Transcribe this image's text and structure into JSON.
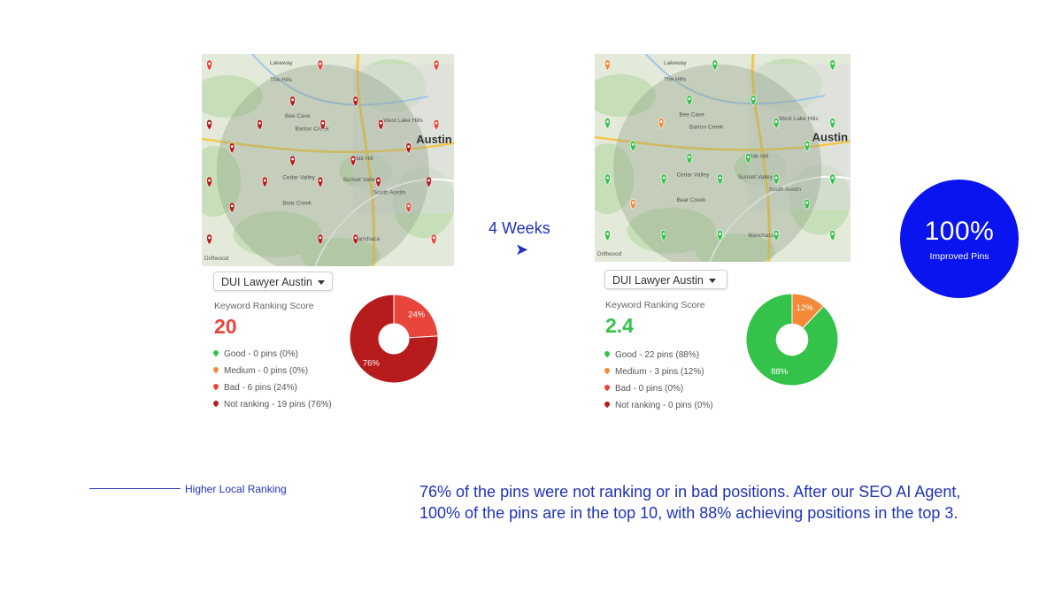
{
  "transition": {
    "label": "4 Weeks",
    "arrow_glyph": "➤"
  },
  "badge": {
    "value": "100%",
    "label": "Improved Pins",
    "color": "#0a14ee"
  },
  "footer": {
    "tagline": "Higher Local Ranking",
    "summary": "76% of the pins were not ranking or in bad positions. After our SEO AI Agent, 100% of the pins are in the top 10, with 88% achieving positions in the top 3."
  },
  "colors": {
    "good": "#35c24a",
    "medium": "#f4893a",
    "bad": "#e8453c",
    "not_ranking": "#b71c1c",
    "accent": "#1f33b8"
  },
  "map_labels": [
    "Lakeway",
    "The Hills",
    "Bee Cave",
    "Barton Creek",
    "West Lake Hills",
    "Austin",
    "Cedar Valley",
    "Sunset Valley",
    "Bear Creek",
    "Manchaca",
    "Driftwood",
    "South Austin",
    "Oak Hill"
  ],
  "before": {
    "keyword": "DUI Lawyer Austin",
    "score_label": "Keyword Ranking Score",
    "score": "20",
    "score_color": "#e8453c",
    "legend": [
      {
        "key": "good",
        "label": "Good - 0 pins (0%)"
      },
      {
        "key": "medium",
        "label": "Medium - 0 pins (0%)"
      },
      {
        "key": "bad",
        "label": "Bad - 6 pins (24%)"
      },
      {
        "key": "not_ranking",
        "label": "Not ranking - 19 pins (76%)"
      }
    ],
    "chart_data": {
      "type": "pie",
      "slices": [
        {
          "key": "bad",
          "value": 24,
          "label": "24%",
          "color": "#e8453c"
        },
        {
          "key": "not_ranking",
          "value": 76,
          "label": "76%",
          "color": "#b71c1c"
        }
      ]
    },
    "pins": [
      {
        "gx": 0.03,
        "gy": 0.05,
        "key": "bad"
      },
      {
        "gx": 0.47,
        "gy": 0.05,
        "key": "bad"
      },
      {
        "gx": 0.93,
        "gy": 0.05,
        "key": "bad"
      },
      {
        "gx": 0.03,
        "gy": 0.33,
        "key": "not_ranking"
      },
      {
        "gx": 0.23,
        "gy": 0.33,
        "key": "not_ranking"
      },
      {
        "gx": 0.71,
        "gy": 0.33,
        "key": "not_ranking"
      },
      {
        "gx": 0.93,
        "gy": 0.33,
        "key": "bad"
      },
      {
        "gx": 0.03,
        "gy": 0.6,
        "key": "not_ranking"
      },
      {
        "gx": 0.25,
        "gy": 0.6,
        "key": "not_ranking"
      },
      {
        "gx": 0.47,
        "gy": 0.6,
        "key": "not_ranking"
      },
      {
        "gx": 0.7,
        "gy": 0.6,
        "key": "not_ranking"
      },
      {
        "gx": 0.9,
        "gy": 0.6,
        "key": "not_ranking"
      },
      {
        "gx": 0.03,
        "gy": 0.87,
        "key": "not_ranking"
      },
      {
        "gx": 0.47,
        "gy": 0.87,
        "key": "not_ranking"
      },
      {
        "gx": 0.92,
        "gy": 0.87,
        "key": "bad"
      },
      {
        "gx": 0.61,
        "gy": 0.87,
        "key": "not_ranking"
      },
      {
        "gx": 0.36,
        "gy": 0.5,
        "key": "not_ranking"
      },
      {
        "gx": 0.6,
        "gy": 0.5,
        "key": "not_ranking"
      },
      {
        "gx": 0.36,
        "gy": 0.22,
        "key": "not_ranking"
      },
      {
        "gx": 0.61,
        "gy": 0.22,
        "key": "not_ranking"
      },
      {
        "gx": 0.12,
        "gy": 0.44,
        "key": "not_ranking"
      },
      {
        "gx": 0.82,
        "gy": 0.44,
        "key": "not_ranking"
      },
      {
        "gx": 0.12,
        "gy": 0.72,
        "key": "not_ranking"
      },
      {
        "gx": 0.82,
        "gy": 0.72,
        "key": "bad"
      },
      {
        "gx": 0.48,
        "gy": 0.33,
        "key": "not_ranking"
      }
    ]
  },
  "after": {
    "keyword": "DUI Lawyer Austin",
    "score_label": "Keyword Ranking Score",
    "score": "2.4",
    "score_color": "#35c24a",
    "legend": [
      {
        "key": "good",
        "label": "Good - 22 pins (88%)"
      },
      {
        "key": "medium",
        "label": "Medium - 3 pins (12%)"
      },
      {
        "key": "bad",
        "label": "Bad - 0 pins (0%)"
      },
      {
        "key": "not_ranking",
        "label": "Not ranking - 0 pins (0%)"
      }
    ],
    "chart_data": {
      "type": "pie",
      "slices": [
        {
          "key": "medium",
          "value": 12,
          "label": "12%",
          "color": "#f4893a"
        },
        {
          "key": "good",
          "value": 88,
          "label": "88%",
          "color": "#35c24a"
        }
      ]
    },
    "pins": [
      {
        "gx": 0.05,
        "gy": 0.05,
        "key": "medium"
      },
      {
        "gx": 0.47,
        "gy": 0.05,
        "key": "good"
      },
      {
        "gx": 0.93,
        "gy": 0.05,
        "key": "good"
      },
      {
        "gx": 0.05,
        "gy": 0.33,
        "key": "good"
      },
      {
        "gx": 0.26,
        "gy": 0.33,
        "key": "medium"
      },
      {
        "gx": 0.71,
        "gy": 0.33,
        "key": "good"
      },
      {
        "gx": 0.93,
        "gy": 0.33,
        "key": "good"
      },
      {
        "gx": 0.05,
        "gy": 0.6,
        "key": "good"
      },
      {
        "gx": 0.27,
        "gy": 0.6,
        "key": "good"
      },
      {
        "gx": 0.49,
        "gy": 0.6,
        "key": "good"
      },
      {
        "gx": 0.71,
        "gy": 0.6,
        "key": "good"
      },
      {
        "gx": 0.93,
        "gy": 0.6,
        "key": "good"
      },
      {
        "gx": 0.05,
        "gy": 0.87,
        "key": "good"
      },
      {
        "gx": 0.49,
        "gy": 0.87,
        "key": "good"
      },
      {
        "gx": 0.93,
        "gy": 0.87,
        "key": "good"
      },
      {
        "gx": 0.71,
        "gy": 0.87,
        "key": "good"
      },
      {
        "gx": 0.37,
        "gy": 0.5,
        "key": "good"
      },
      {
        "gx": 0.6,
        "gy": 0.5,
        "key": "good"
      },
      {
        "gx": 0.37,
        "gy": 0.22,
        "key": "good"
      },
      {
        "gx": 0.62,
        "gy": 0.22,
        "key": "good"
      },
      {
        "gx": 0.15,
        "gy": 0.44,
        "key": "good"
      },
      {
        "gx": 0.83,
        "gy": 0.44,
        "key": "good"
      },
      {
        "gx": 0.15,
        "gy": 0.72,
        "key": "medium"
      },
      {
        "gx": 0.83,
        "gy": 0.72,
        "key": "good"
      },
      {
        "gx": 0.27,
        "gy": 0.87,
        "key": "good"
      }
    ]
  }
}
